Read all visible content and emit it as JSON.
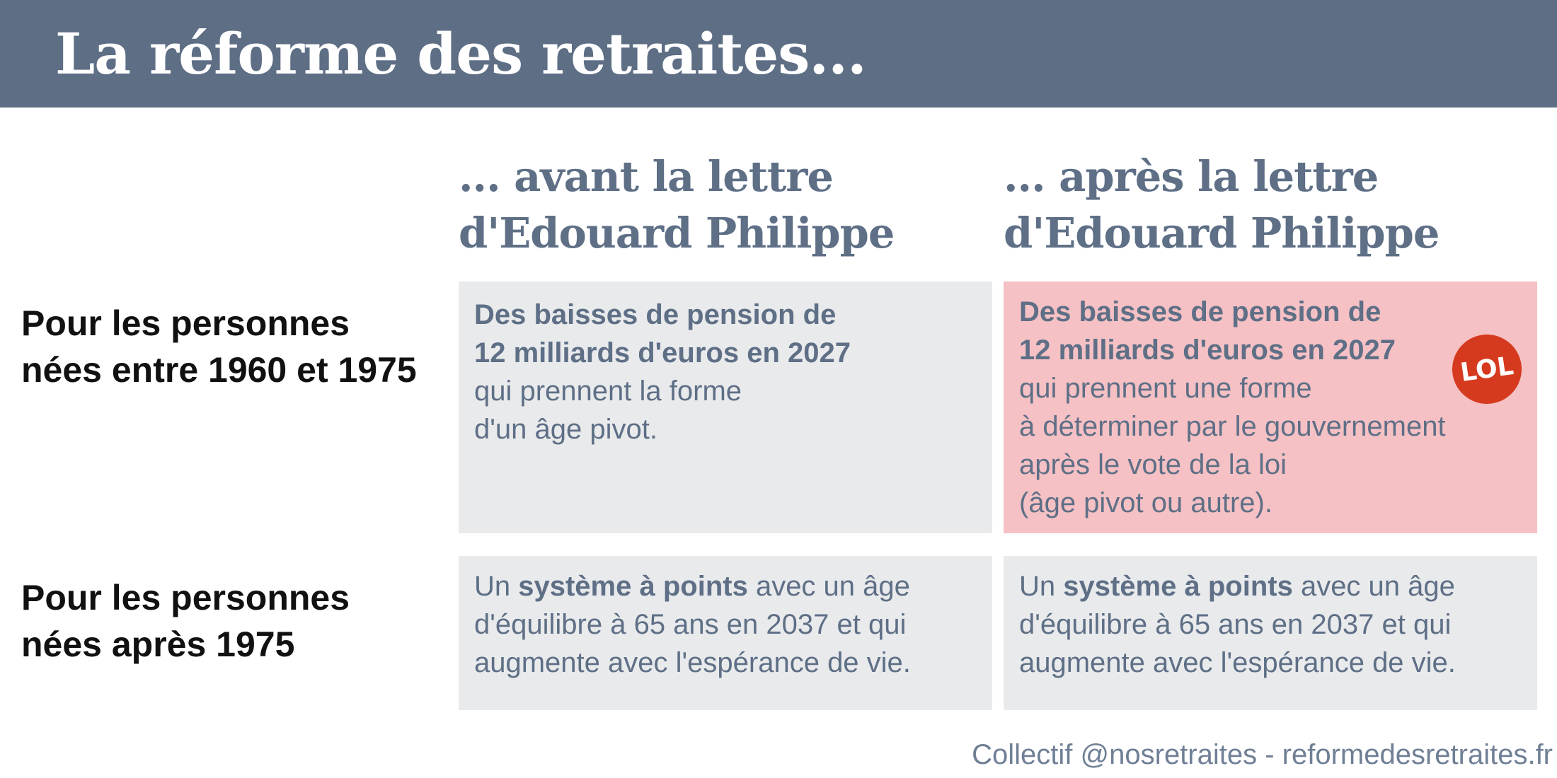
{
  "header": {
    "title": "La réforme des retraites..."
  },
  "columns": {
    "before": {
      "line1": "... avant la lettre",
      "line2": "d'Edouard Philippe"
    },
    "after": {
      "line1": "... après la lettre",
      "line2": "d'Edouard Philippe"
    }
  },
  "rows": {
    "row1": {
      "label_line1": "Pour les personnes",
      "label_line2": "nées entre 1960 et 1975"
    },
    "row2": {
      "label_line1": "Pour les personnes",
      "label_line2": "nées après 1975"
    }
  },
  "cells": {
    "r1_before": {
      "bold1": "Des baisses de pension de",
      "bold2": "12 milliards d'euros en 2027",
      "text1": "qui prennent la forme",
      "text2": "d'un âge pivot."
    },
    "r1_after": {
      "bold1": "Des baisses de pension de",
      "bold2": "12 milliards d'euros en 2027",
      "text1": "qui prennent une forme",
      "text2": "à déterminer par le gouvernement",
      "text3": "après le vote de la loi",
      "text4": "(âge pivot ou autre).",
      "badge": "LOL"
    },
    "r2_before": {
      "pre": "Un ",
      "bold": "système à points",
      "post": " avec un âge",
      "line2": "d'équilibre à 65 ans en 2037 et qui",
      "line3": "augmente avec l'espérance de vie."
    },
    "r2_after": {
      "pre": "Un ",
      "bold": "système à points",
      "post": " avec un âge",
      "line2": "d'équilibre à 65 ans en 2037 et qui",
      "line3": "augmente avec l'espérance de vie."
    }
  },
  "footer": {
    "credit": "Collectif @nosretraites - reformedesretraites.fr"
  },
  "colors": {
    "header_bg": "#5d6e85",
    "cell_bg": "#e9eaec",
    "highlight_bg": "#f5c1c4",
    "badge_bg": "#d63a1e",
    "text_slate": "#5e6f86"
  }
}
